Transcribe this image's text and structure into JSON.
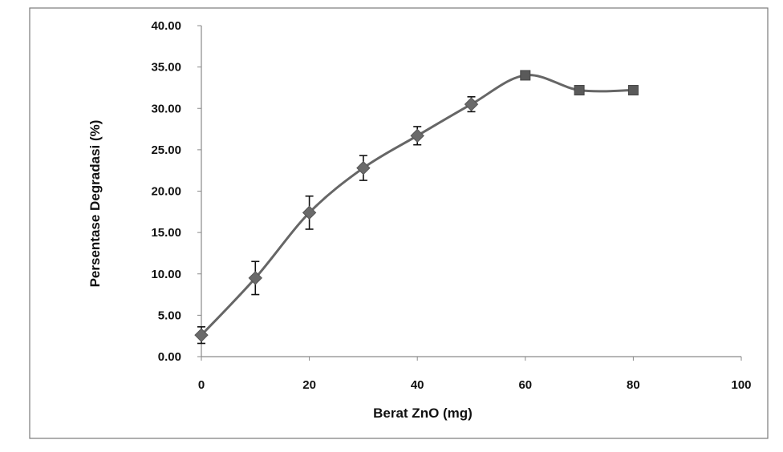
{
  "chart_data": {
    "type": "line",
    "title": "",
    "xlabel": "Berat ZnO (mg)",
    "ylabel": "Persentase Degradasi (%)",
    "xlim": [
      0,
      100
    ],
    "ylim": [
      0,
      40
    ],
    "x_ticks": [
      "0",
      "20",
      "40",
      "60",
      "80",
      "100"
    ],
    "y_ticks": [
      "0.00",
      "5.00",
      "10.00",
      "15.00",
      "20.00",
      "25.00",
      "30.00",
      "35.00",
      "40.00"
    ],
    "grid": false,
    "legend": "none",
    "smoothed": true,
    "series": [
      {
        "x": [
          0,
          10,
          20,
          30,
          40,
          50,
          60,
          70,
          80
        ],
        "values": [
          2.6,
          9.5,
          17.4,
          22.8,
          26.7,
          30.5,
          34.0,
          32.2,
          32.2
        ],
        "error": [
          1.0,
          2.0,
          2.0,
          1.5,
          1.1,
          0.9,
          0.3,
          0.2,
          0.2
        ],
        "color": "#666666"
      }
    ]
  }
}
